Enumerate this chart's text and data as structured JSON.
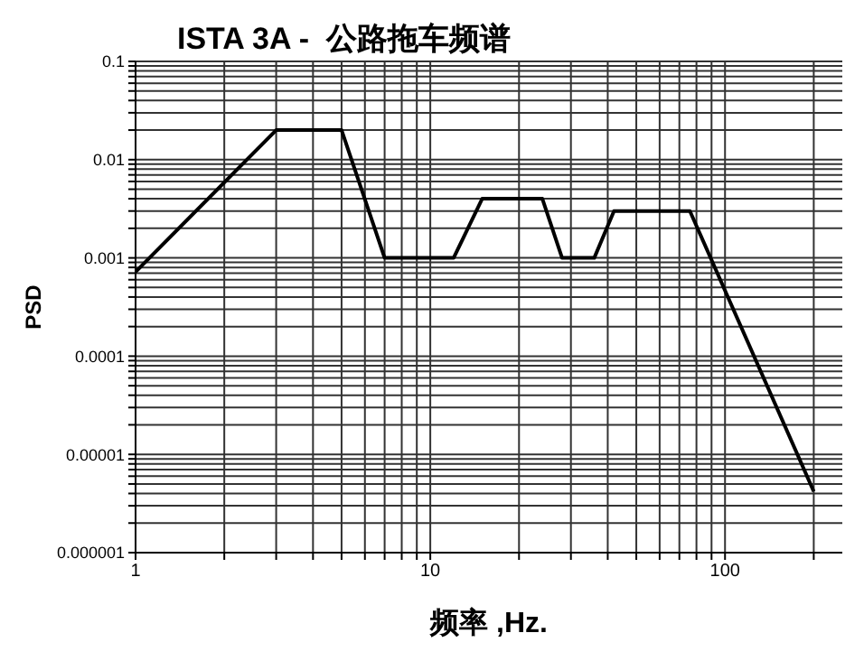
{
  "chart_data": {
    "type": "line",
    "title": "ISTA 3A -  公路拖车频谱",
    "xlabel": "频率 ,Hz.",
    "ylabel": "PSD",
    "log": "xy",
    "grid": true,
    "legend": false,
    "marker": "none",
    "line_style": "solid",
    "x": [
      1,
      3,
      5,
      7,
      12,
      15,
      24,
      28,
      36,
      42,
      76,
      200
    ],
    "series": [
      {
        "color": "#000000",
        "values": [
          0.00072,
          0.02,
          0.02,
          0.001,
          0.001,
          0.004,
          0.004,
          0.001,
          0.001,
          0.003,
          0.003,
          4.2e-06
        ]
      }
    ],
    "xlim": [
      1,
      250
    ],
    "xticks": [
      1,
      {
        "value": 2,
        "label": null
      },
      {
        "value": 3,
        "label": null
      },
      {
        "value": 4,
        "label": null
      },
      {
        "value": 5,
        "label": null
      },
      {
        "value": 6,
        "label": null
      },
      {
        "value": 7,
        "label": null
      },
      {
        "value": 8,
        "label": null
      },
      {
        "value": 9,
        "label": null
      },
      10,
      {
        "value": 20,
        "label": null
      },
      {
        "value": 30,
        "label": null
      },
      {
        "value": 40,
        "label": null
      },
      {
        "value": 50,
        "label": null
      },
      {
        "value": 60,
        "label": null
      },
      {
        "value": 70,
        "label": null
      },
      {
        "value": 80,
        "label": null
      },
      {
        "value": 90,
        "label": null
      },
      100,
      {
        "value": 200,
        "label": null
      }
    ],
    "ylim": [
      1e-06,
      0.1
    ],
    "yticks": [
      {
        "value": 1e-06,
        "label": "0.000001"
      },
      {
        "value": 2e-06,
        "label": null
      },
      {
        "value": 3e-06,
        "label": null
      },
      {
        "value": 4e-06,
        "label": null
      },
      {
        "value": 5e-06,
        "label": null
      },
      {
        "value": 6e-06,
        "label": null
      },
      {
        "value": 7e-06,
        "label": null
      },
      {
        "value": 8e-06,
        "label": null
      },
      {
        "value": 9e-06,
        "label": null
      },
      {
        "value": 1e-05,
        "label": "0.00001"
      },
      {
        "value": 2e-05,
        "label": null
      },
      {
        "value": 3e-05,
        "label": null
      },
      {
        "value": 4e-05,
        "label": null
      },
      {
        "value": 5e-05,
        "label": null
      },
      {
        "value": 6e-05,
        "label": null
      },
      {
        "value": 7e-05,
        "label": null
      },
      {
        "value": 8e-05,
        "label": null
      },
      {
        "value": 9e-05,
        "label": null
      },
      0.0001,
      {
        "value": 0.0002,
        "label": null
      },
      {
        "value": 0.0003,
        "label": null
      },
      {
        "value": 0.0004,
        "label": null
      },
      {
        "value": 0.0005,
        "label": null
      },
      {
        "value": 0.0006,
        "label": null
      },
      {
        "value": 0.0007,
        "label": null
      },
      {
        "value": 0.0008,
        "label": null
      },
      {
        "value": 0.0009,
        "label": null
      },
      0.001,
      {
        "value": 0.002,
        "label": null
      },
      {
        "value": 0.003,
        "label": null
      },
      {
        "value": 0.004,
        "label": null
      },
      {
        "value": 0.005,
        "label": null
      },
      {
        "value": 0.006,
        "label": null
      },
      {
        "value": 0.007,
        "label": null
      },
      {
        "value": 0.008,
        "label": null
      },
      {
        "value": 0.009,
        "label": null
      },
      0.01,
      {
        "value": 0.02,
        "label": null
      },
      {
        "value": 0.03,
        "label": null
      },
      {
        "value": 0.04,
        "label": null
      },
      {
        "value": 0.05,
        "label": null
      },
      {
        "value": 0.06,
        "label": null
      },
      {
        "value": 0.07,
        "label": null
      },
      {
        "value": 0.08,
        "label": null
      },
      {
        "value": 0.09,
        "label": null
      },
      0.1
    ]
  }
}
